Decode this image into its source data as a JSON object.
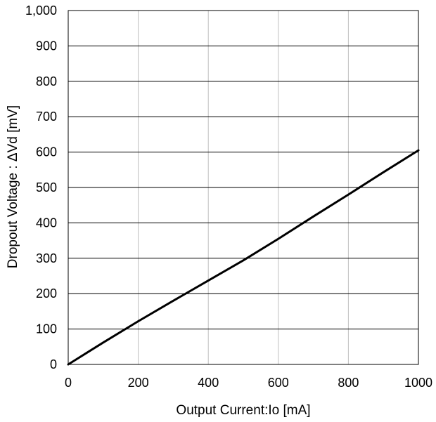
{
  "chart_data": {
    "type": "line",
    "title": "",
    "xlabel": "Output Current:Io [mA]",
    "ylabel": "Dropout Voltage : ΔVd [mV]",
    "xlim": [
      0,
      1000
    ],
    "ylim": [
      0,
      1000
    ],
    "x_ticks": [
      0,
      200,
      400,
      600,
      800,
      1000
    ],
    "y_ticks": [
      0,
      100,
      200,
      300,
      400,
      500,
      600,
      700,
      800,
      900,
      1000
    ],
    "x_tick_labels": [
      "0",
      "200",
      "400",
      "600",
      "800",
      "1000"
    ],
    "y_tick_labels": [
      "0",
      "100",
      "200",
      "300",
      "400",
      "500",
      "600",
      "700",
      "800",
      "900",
      "1,000"
    ],
    "grid": true,
    "legend": "none",
    "series": [
      {
        "color": "#000000",
        "x": [
          0,
          100,
          200,
          300,
          400,
          500,
          600,
          700,
          800,
          900,
          1000
        ],
        "y": [
          0,
          62,
          122,
          180,
          237,
          294,
          355,
          418,
          480,
          543,
          605
        ]
      }
    ]
  }
}
